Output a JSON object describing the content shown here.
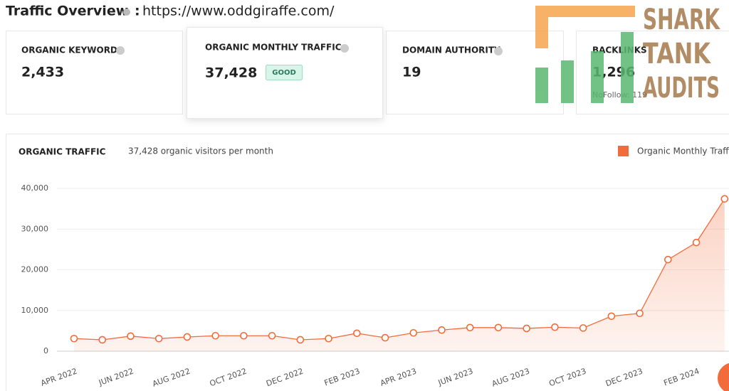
{
  "header": {
    "title": "Traffic Overview",
    "separator": ":",
    "url": "https://www.oddgiraffe.com/"
  },
  "cards": [
    {
      "label": "ORGANIC KEYWORDS",
      "value": "2,433"
    },
    {
      "label": "ORGANIC MONTHLY TRAFFIC",
      "value": "37,428",
      "badge": "GOOD"
    },
    {
      "label": "DOMAIN AUTHORITY",
      "value": "19"
    },
    {
      "label": "BACKLINKS",
      "value": "1,296",
      "note": "NoFollow: 119"
    }
  ],
  "logo": {
    "lines": [
      "SHARK",
      "TANK",
      "AUDITS"
    ]
  },
  "chart_data": {
    "type": "area",
    "title": "ORGANIC TRAFFIC",
    "subtitle": "37,428 organic visitors per month",
    "categories": [
      "APR 2022",
      null,
      "JUN 2022",
      null,
      "AUG 2022",
      null,
      "OCT 2022",
      null,
      "DEC 2022",
      null,
      "FEB 2023",
      null,
      "APR 2023",
      null,
      "JUN 2023",
      null,
      "AUG 2023",
      null,
      "OCT 2023",
      null,
      "DEC 2023",
      null,
      "FEB 2024",
      null
    ],
    "series": [
      {
        "name": "Organic Monthly Traffic",
        "color": "#f26b3a",
        "values": [
          3100,
          2800,
          3700,
          3100,
          3500,
          3800,
          3800,
          3800,
          2800,
          3100,
          4400,
          3300,
          4500,
          5200,
          5800,
          5800,
          5600,
          5900,
          5700,
          8600,
          9300,
          22500,
          26700,
          37428
        ]
      }
    ],
    "ylim": [
      0,
      40000
    ],
    "yticks": [
      0,
      {
        "value": 10000,
        "label": "10,000"
      },
      {
        "value": 20000,
        "label": "20,000"
      },
      {
        "value": 30000,
        "label": "30,000"
      },
      {
        "value": 40000,
        "label": "40,000"
      }
    ],
    "grid": true,
    "legend": "top-right"
  }
}
